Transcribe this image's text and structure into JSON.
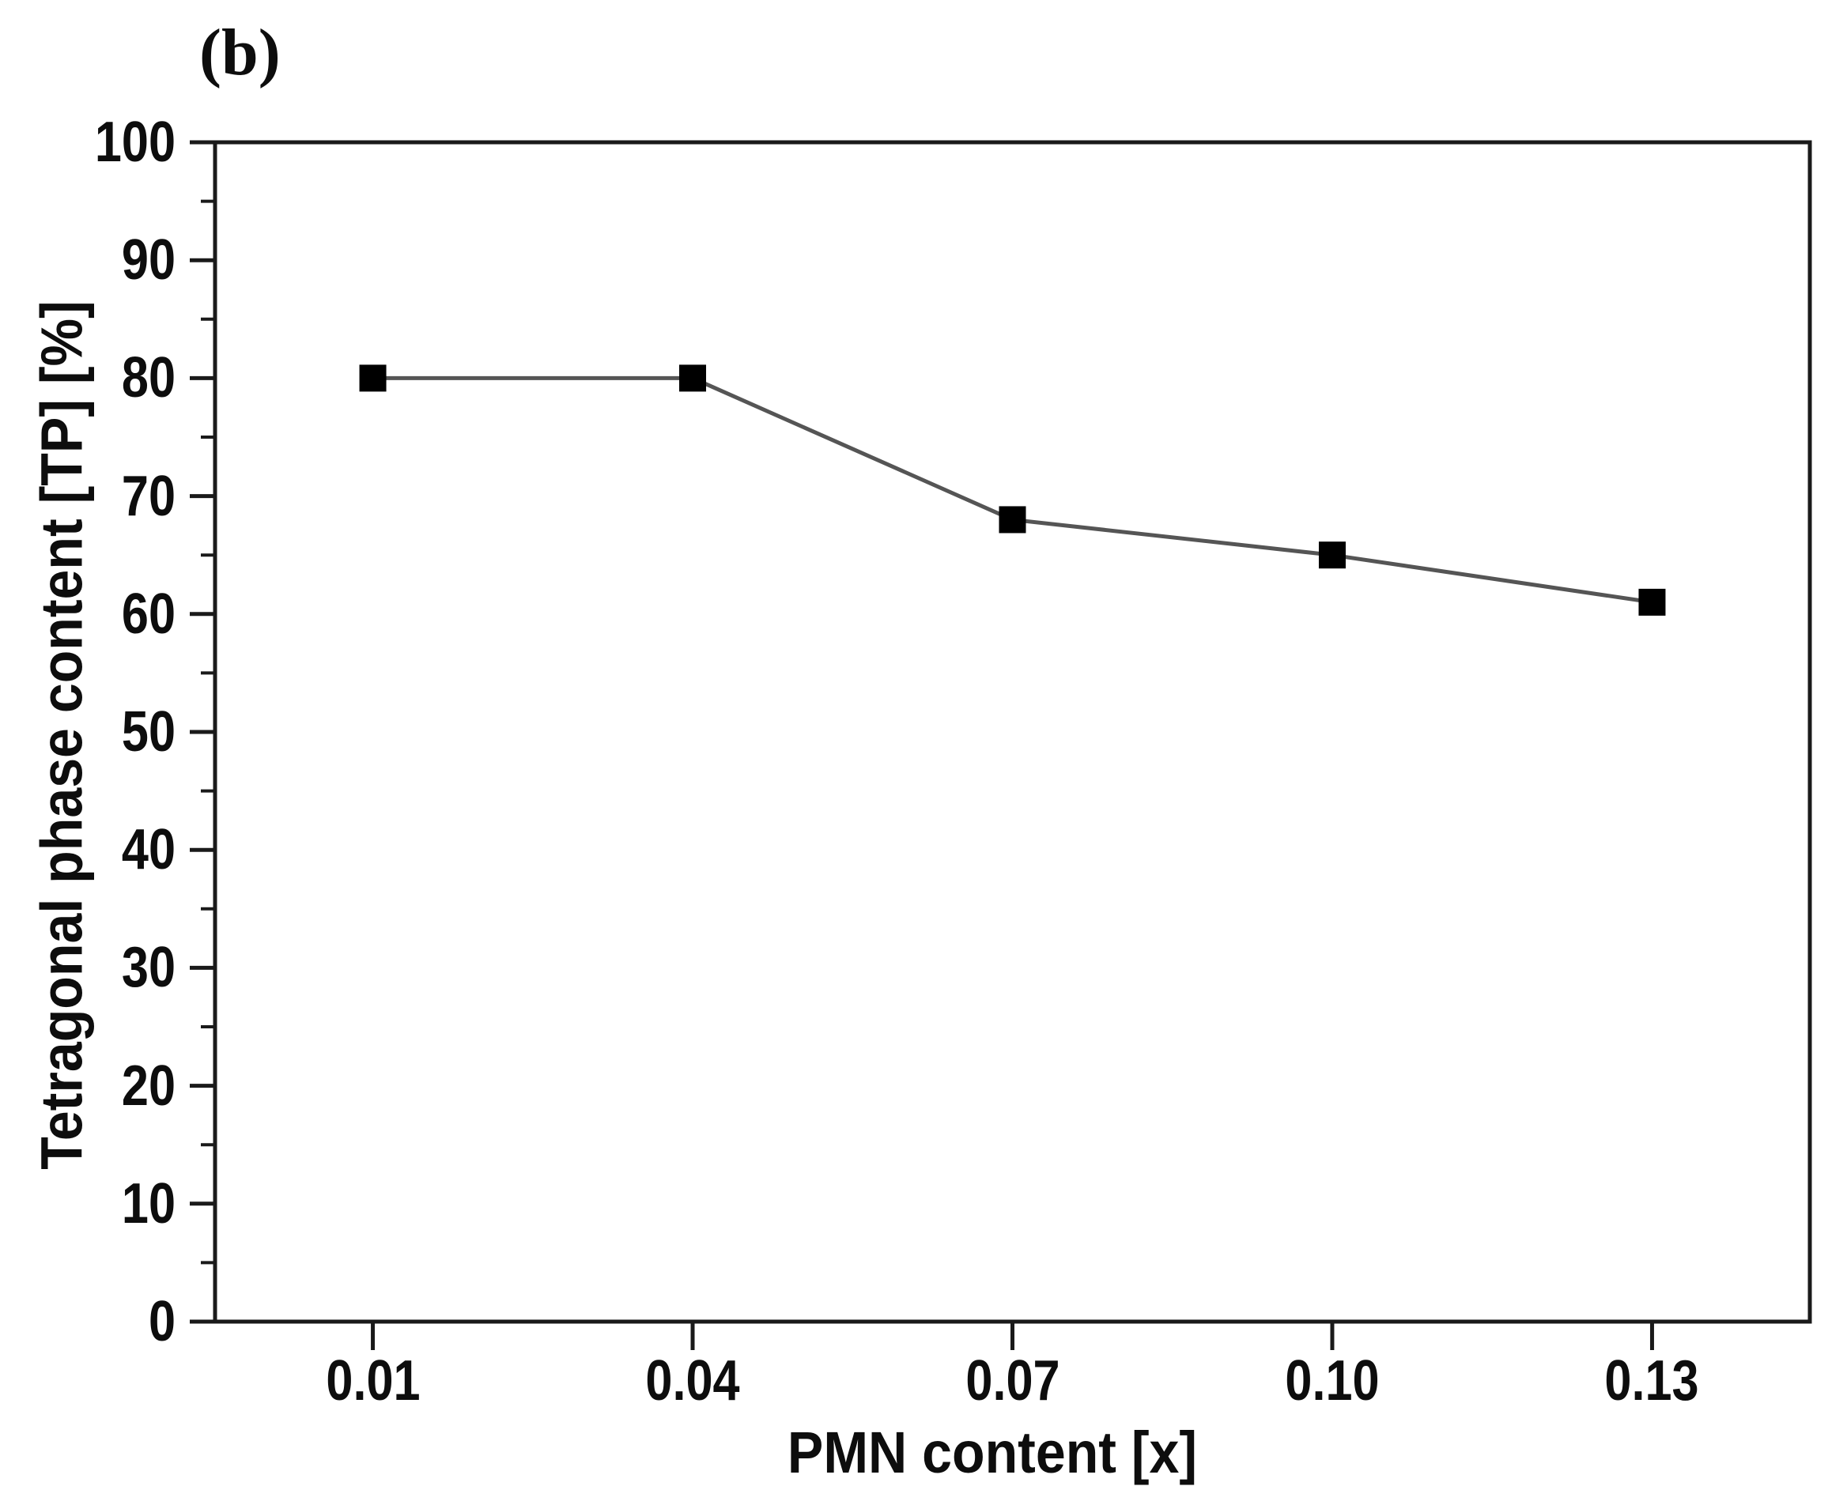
{
  "panel_label": "(b)",
  "chart_data": {
    "type": "line",
    "title": "",
    "xlabel": "PMN content [x]",
    "ylabel": "Tetragonal phase content [TP] [%]",
    "x": [
      0.01,
      0.04,
      0.07,
      0.1,
      0.13
    ],
    "x_tick_labels": [
      "0.01",
      "0.04",
      "0.07",
      "0.10",
      "0.13"
    ],
    "series": [
      {
        "name": "Tetragonal phase content (TP)",
        "values": [
          80,
          80,
          68,
          65,
          61
        ]
      }
    ],
    "xlim": [
      -0.0048,
      0.1448
    ],
    "ylim": [
      0,
      100
    ],
    "y_tick_values": [
      0,
      10,
      20,
      30,
      40,
      50,
      60,
      70,
      80,
      90,
      100
    ],
    "y_tick_labels": [
      "0",
      "10",
      "20",
      "30",
      "40",
      "50",
      "60",
      "70",
      "80",
      "90",
      "100"
    ],
    "y_minor_tick_values": [
      5,
      15,
      25,
      35,
      45,
      55,
      65,
      75,
      85,
      95
    ],
    "grid": false,
    "legend": false,
    "marker": "filled-square",
    "marker_size_px": 34,
    "colors": {
      "marker": "#000000",
      "line": "#555555",
      "axis": "#1a1a1a",
      "text": "#0d0d0d",
      "background": "#ffffff"
    }
  }
}
